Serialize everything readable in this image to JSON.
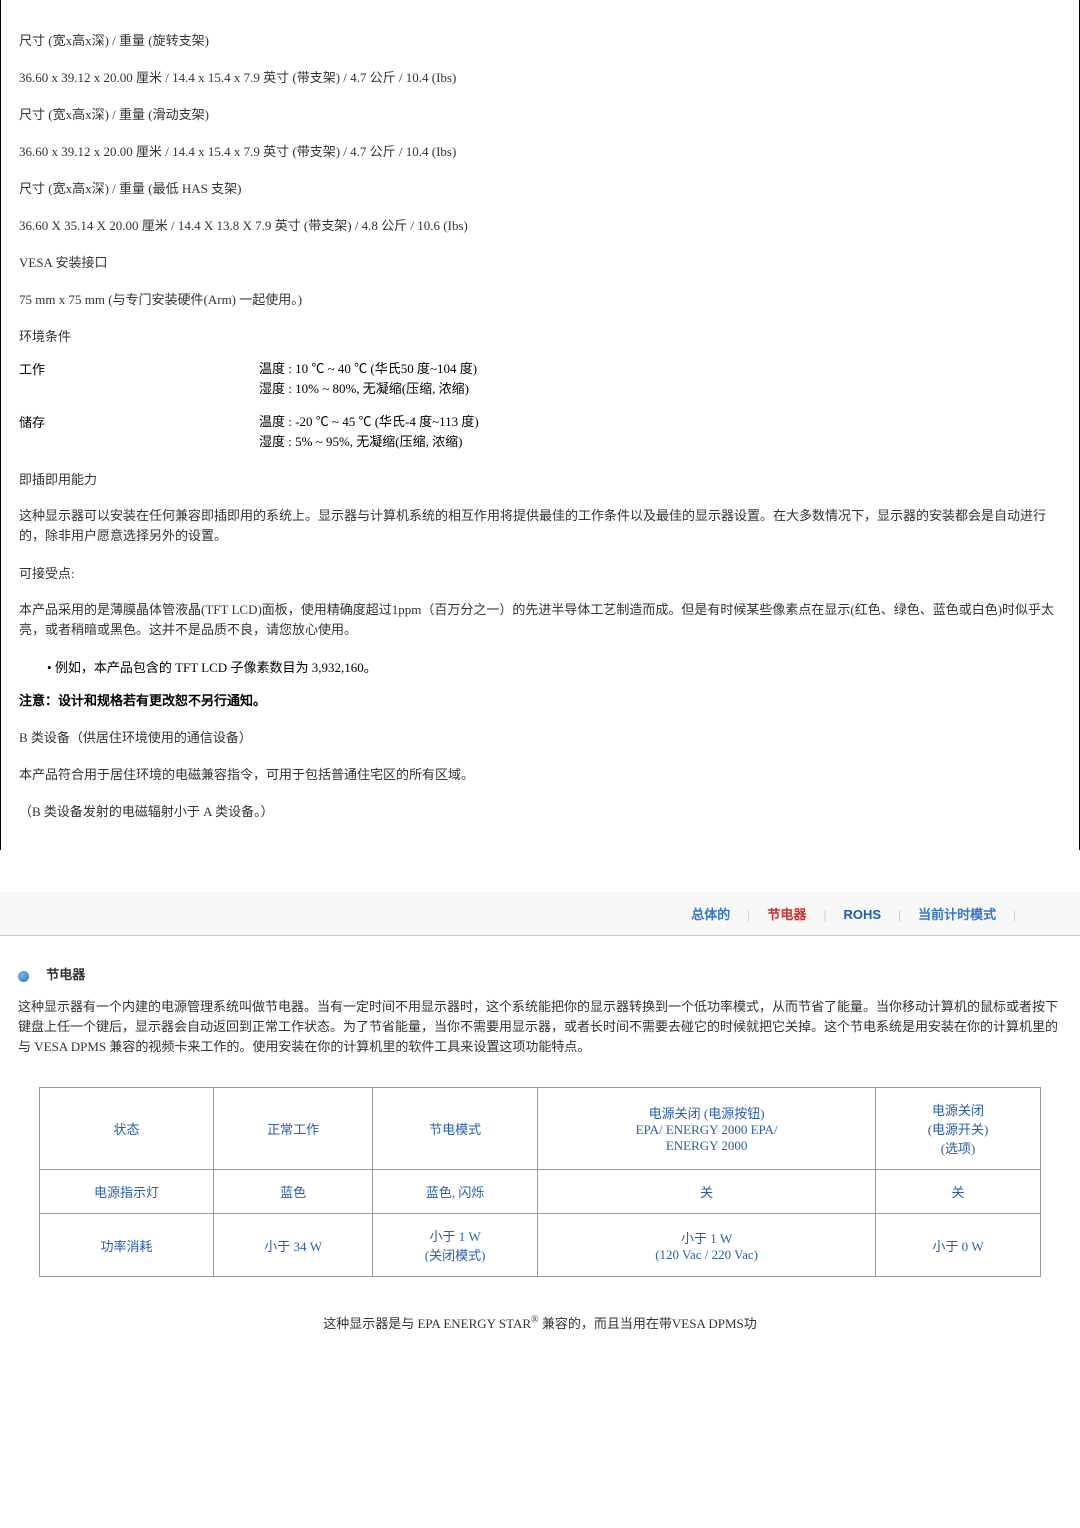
{
  "spec": {
    "dim1_label": "尺寸 (宽x高x深) / 重量 (旋转支架)",
    "dim1_value": "36.60 x 39.12 x 20.00 厘米 / 14.4 x 15.4 x 7.9 英寸 (带支架) / 4.7 公斤 / 10.4 (Ibs)",
    "dim2_label": "尺寸 (宽x高x深) / 重量 (滑动支架)",
    "dim2_value": "36.60 x 39.12 x 20.00 厘米 / 14.4 x 15.4 x 7.9 英寸 (带支架) / 4.7 公斤 / 10.4 (Ibs)",
    "dim3_label": "尺寸 (宽x高x深) / 重量 (最低 HAS 支架)",
    "dim3_value": "36.60 X 35.14 X 20.00 厘米 / 14.4 X 13.8 X 7.9 英寸 (带支架) / 4.8 公斤 / 10.6 (Ibs)",
    "vesa_label": "VESA 安装接口",
    "vesa_value": "75 mm x 75 mm (与专门安装硬件(Arm) 一起使用。)",
    "env_label": "环境条件",
    "work_label": "工作",
    "work_temp": "温度 : 10 ℃ ~ 40 ℃ (华氏50 度~104 度)",
    "work_humid": "湿度 : 10% ~ 80%, 无凝缩(压缩, 浓缩)",
    "store_label": "储存",
    "store_temp": "温度 : -20 ℃ ~ 45 ℃ (华氏-4 度~113 度)",
    "store_humid": "湿度 : 5% ~ 95%, 无凝缩(压缩, 浓缩)",
    "pnp_label": "即插即用能力",
    "pnp_text": "这种显示器可以安装在任何兼容即插即用的系统上。显示器与计算机系统的相互作用将提供最佳的工作条件以及最佳的显示器设置。在大多数情况下，显示器的安装都会是自动进行的，除非用户愿意选择另外的设置。",
    "accept_label": "可接受点:",
    "accept_text": "本产品采用的是薄膜晶体管液晶(TFT LCD)面板，使用精确度超过1ppm（百万分之一）的先进半导体工艺制造而成。但是有时候某些像素点在显示(红色、绿色、蓝色或白色)时似乎太亮，或者稍暗或黑色。这并不是品质不良，请您放心使用。",
    "bullet_example": "例如，本产品包含的 TFT LCD 子像素数目为 3,932,160。",
    "note": "注意：设计和规格若有更改恕不另行通知。",
    "class_b_1": "B 类设备（供居住环境使用的通信设备）",
    "class_b_2": "本产品符合用于居住环境的电磁兼容指令，可用于包括普通住宅区的所有区域。",
    "class_b_3": "（B 类设备发射的电磁辐射小于 A 类设备。）"
  },
  "tabs": {
    "t1": "总体的",
    "t2": "节电器",
    "t3": "ROHS",
    "t4": "当前计时模式"
  },
  "power": {
    "section_title": "节电器",
    "intro": "这种显示器有一个内建的电源管理系统叫做节电器。当有一定时间不用显示器时，这个系统能把你的显示器转换到一个低功率模式，从而节省了能量。当你移动计算机的鼠标或者按下键盘上任一个键后，显示器会自动返回到正常工作状态。为了节省能量，当你不需要用显示器，或者长时间不需要去碰它的时候就把它关掉。这个节电系统是用安装在你的计算机里的与 VESA DPMS 兼容的视频卡来工作的。使用安装在你的计算机里的软件工具来设置这项功能特点。",
    "headers": {
      "state": "状态",
      "normal": "正常工作",
      "save_mode": "节电模式",
      "off_button": "电源关闭 (电源按钮)\nEPA/ ENERGY 2000 EPA/\nENERGY 2000",
      "off_switch": "电源关闭\n(电源开关)\n(选项)"
    },
    "rows": {
      "led_label": "电源指示灯",
      "led_normal": "蓝色",
      "led_save": "蓝色, 闪烁",
      "led_off_btn": "关",
      "led_off_sw": "关",
      "pwr_label": "功率消耗",
      "pwr_normal": "小于 34 W",
      "pwr_save": "小于 1 W\n(关闭模式)",
      "pwr_off_btn": "小于 1 W\n(120 Vac / 220 Vac)",
      "pwr_off_sw": "小于 0 W"
    },
    "footer_before": "这种显示器是与 EPA ENERGY STAR",
    "footer_after": " 兼容的，而且当用在带VESA DPMS功"
  }
}
